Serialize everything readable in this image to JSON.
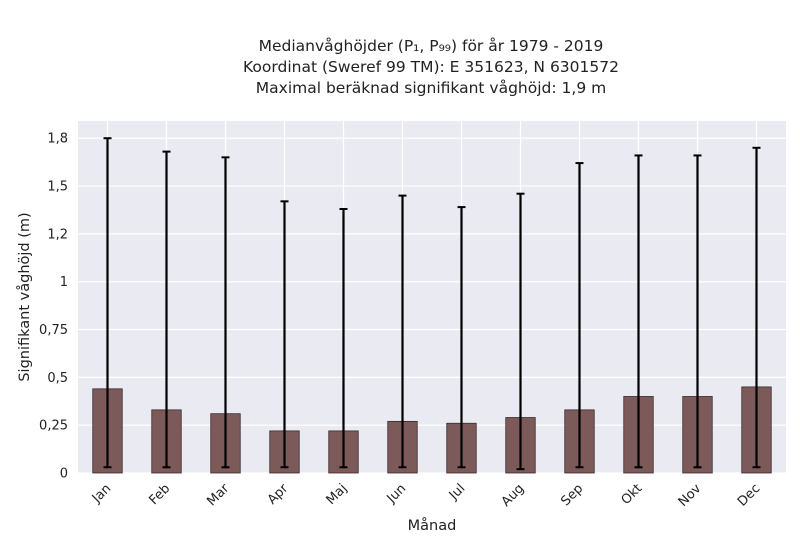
{
  "chart_data": {
    "type": "bar",
    "title_lines": [
      "Medianvåghöjder (P₁, P₉₉) för år 1979 - 2019",
      "Koordinat (Sweref 99 TM): E 351623, N 6301572",
      "Maximal beräknad signifikant våghöjd: 1,9 m"
    ],
    "xlabel": "Månad",
    "ylabel": "Signifikant våghöjd (m)",
    "categories": [
      "Jan",
      "Feb",
      "Mar",
      "Apr",
      "Maj",
      "Jun",
      "Jul",
      "Aug",
      "Sep",
      "Okt",
      "Nov",
      "Dec"
    ],
    "values": [
      0.44,
      0.33,
      0.31,
      0.22,
      0.22,
      0.27,
      0.26,
      0.29,
      0.33,
      0.4,
      0.4,
      0.45
    ],
    "error_low": [
      0.03,
      0.03,
      0.03,
      0.03,
      0.03,
      0.03,
      0.03,
      0.02,
      0.03,
      0.03,
      0.03,
      0.03
    ],
    "error_high": [
      1.75,
      1.68,
      1.65,
      1.42,
      1.38,
      1.45,
      1.39,
      1.46,
      1.62,
      1.66,
      1.66,
      1.7
    ],
    "yticks": [
      0,
      0.25,
      0.5,
      0.75,
      1,
      1.25,
      1.5,
      1.75
    ],
    "ytick_labels": [
      "0",
      "0,25",
      "0,5",
      "0,75",
      "1",
      "1,2",
      "1,5",
      "1,8"
    ],
    "ylim": [
      0,
      1.84
    ],
    "grid": true,
    "colors": {
      "bar": "#7d5a5a",
      "bar_edge": "#3a2a2a",
      "plot_bg": "#eaeaf2",
      "grid": "#ffffff",
      "error": "#000000"
    }
  }
}
